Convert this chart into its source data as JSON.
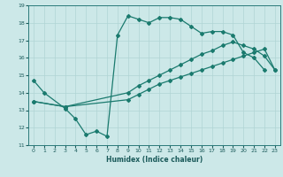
{
  "title": "",
  "xlabel": "Humidex (Indice chaleur)",
  "bg_color": "#cce8e8",
  "line_color": "#1a7a6e",
  "xlim": [
    -0.5,
    23.5
  ],
  "ylim": [
    11,
    19
  ],
  "xticks": [
    0,
    1,
    2,
    3,
    4,
    5,
    6,
    7,
    8,
    9,
    10,
    11,
    12,
    13,
    14,
    15,
    16,
    17,
    18,
    19,
    20,
    21,
    22,
    23
  ],
  "yticks": [
    11,
    12,
    13,
    14,
    15,
    16,
    17,
    18,
    19
  ],
  "line1_x": [
    0,
    1,
    3,
    4,
    5,
    6,
    7,
    8,
    9,
    10,
    11,
    12,
    13,
    14,
    15,
    16,
    17,
    18,
    19,
    20,
    21,
    22
  ],
  "line1_y": [
    14.7,
    14.0,
    13.1,
    12.5,
    11.6,
    11.8,
    11.5,
    17.3,
    18.4,
    18.2,
    18.0,
    18.3,
    18.3,
    18.2,
    17.8,
    17.4,
    17.5,
    17.5,
    17.3,
    16.3,
    16.0,
    15.3
  ],
  "line2_x": [
    0,
    3,
    9,
    10,
    11,
    12,
    13,
    14,
    15,
    16,
    17,
    18,
    19,
    20,
    21,
    22,
    23
  ],
  "line2_y": [
    13.5,
    13.2,
    13.6,
    13.9,
    14.2,
    14.5,
    14.7,
    14.9,
    15.1,
    15.3,
    15.5,
    15.7,
    15.9,
    16.1,
    16.3,
    16.5,
    15.3
  ],
  "line3_x": [
    0,
    3,
    9,
    10,
    11,
    12,
    13,
    14,
    15,
    16,
    17,
    18,
    19,
    20,
    21,
    22,
    23
  ],
  "line3_y": [
    13.5,
    13.2,
    14.0,
    14.4,
    14.7,
    15.0,
    15.3,
    15.6,
    15.9,
    16.2,
    16.4,
    16.7,
    16.9,
    16.7,
    16.5,
    16.1,
    15.3
  ]
}
